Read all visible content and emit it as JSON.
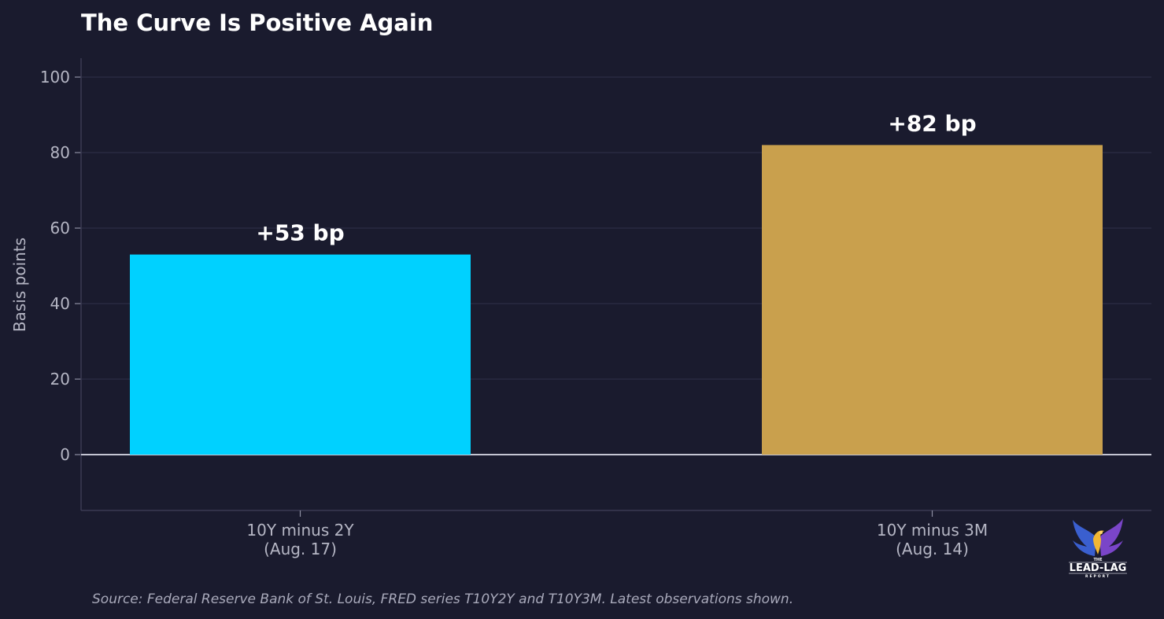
{
  "chart_data": {
    "type": "bar",
    "title": "The Curve Is Positive Again",
    "ylabel": "Basis points",
    "ylim": [
      -15,
      105
    ],
    "yticks": [
      0,
      20,
      40,
      60,
      80,
      100
    ],
    "grid": true,
    "categories": [
      {
        "line1": "10Y minus 2Y",
        "line2": "(Aug. 17)"
      },
      {
        "line1": "10Y minus 3M",
        "line2": "(Aug. 14)"
      }
    ],
    "values": [
      53,
      82
    ],
    "data_labels": [
      "+53 bp",
      "+82 bp"
    ],
    "colors": [
      "#00d1ff",
      "#c9a04d"
    ],
    "source": "Source: Federal Reserve Bank of St. Louis, FRED series T10Y2Y and T10Y3M. Latest observations shown."
  },
  "logo": {
    "icon": "phoenix-icon",
    "line_top": "THE",
    "line_main": "LEAD-LAG",
    "line_bottom": "REPORT"
  }
}
